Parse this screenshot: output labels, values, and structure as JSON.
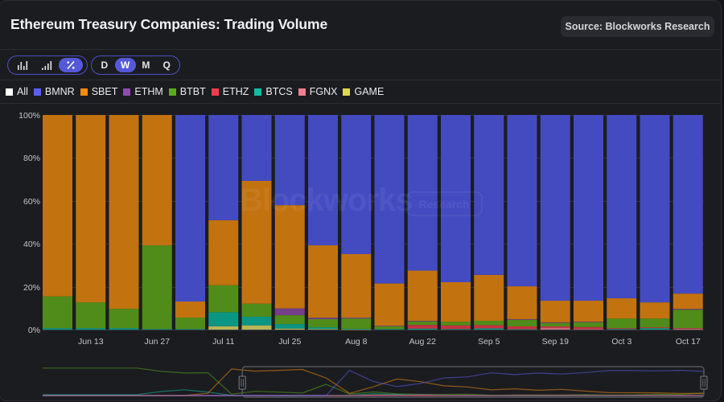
{
  "header": {
    "title": "Ethereum Treasury Companies: Trading Volume",
    "source_badge": "Source: Blockworks Research"
  },
  "toolbar": {
    "chart_modes": [
      {
        "icon": "bar-chart-icon",
        "active": false
      },
      {
        "icon": "ascending-bars-icon",
        "active": false
      },
      {
        "icon": "percent-icon",
        "active": true
      }
    ],
    "intervals": [
      {
        "label": "D",
        "active": false
      },
      {
        "label": "W",
        "active": true
      },
      {
        "label": "M",
        "active": false
      },
      {
        "label": "Q",
        "active": false
      }
    ]
  },
  "legend": {
    "items": [
      {
        "label": "All",
        "color": "#ffffff"
      },
      {
        "label": "BMNR",
        "color": "#5b5ff0"
      },
      {
        "label": "SBET",
        "color": "#f28c0f"
      },
      {
        "label": "ETHM",
        "color": "#8e4bb0"
      },
      {
        "label": "BTBT",
        "color": "#5aab1e"
      },
      {
        "label": "ETHZ",
        "color": "#ee3b4e"
      },
      {
        "label": "BTCS",
        "color": "#12bca0"
      },
      {
        "label": "FGNX",
        "color": "#ee7f8e"
      },
      {
        "label": "GAME",
        "color": "#dcd94c"
      }
    ]
  },
  "watermark": {
    "brand": "Blockworks",
    "tag": "Research"
  },
  "chart_data": {
    "type": "bar",
    "stacked": true,
    "normalized_percent": true,
    "title": "Ethereum Treasury Companies: Trading Volume",
    "xlabel": "",
    "ylabel": "",
    "ylim": [
      0,
      100
    ],
    "y_ticks": [
      0,
      20,
      40,
      60,
      80,
      100
    ],
    "y_tick_labels": [
      "0%",
      "20%",
      "40%",
      "60%",
      "80%",
      "100%"
    ],
    "grid": true,
    "legend_position": "top-left",
    "categories": [
      "Jun 6",
      "Jun 13",
      "Jun 20",
      "Jun 27",
      "Jul 4",
      "Jul 11",
      "Jul 18",
      "Jul 25",
      "Aug 1",
      "Aug 8",
      "Aug 15",
      "Aug 22",
      "Aug 29",
      "Sep 5",
      "Sep 12",
      "Sep 19",
      "Sep 26",
      "Oct 3",
      "Oct 10",
      "Oct 17"
    ],
    "x_tick_labels": [
      "Jun 13",
      "Jun 27",
      "Jul 11",
      "Jul 25",
      "Aug 8",
      "Aug 22",
      "Sep 5",
      "Sep 19",
      "Oct 3",
      "Oct 17"
    ],
    "stack_order_bottom_to_top": [
      "GAME",
      "FGNX",
      "BTCS",
      "ETHZ",
      "BTBT",
      "ETHM",
      "SBET",
      "BMNR"
    ],
    "series": [
      {
        "name": "BMNR",
        "color": "#5b5ff0",
        "bar_color": "#444bc1",
        "values": [
          0,
          0,
          0,
          0,
          86.9,
          49.0,
          30.7,
          42.0,
          60.7,
          64.8,
          78.5,
          72.5,
          77.9,
          74.5,
          79.8,
          86.5,
          86.5,
          85.4,
          87.3,
          83.2
        ]
      },
      {
        "name": "SBET",
        "color": "#f28c0f",
        "bar_color": "#c2720f",
        "values": [
          84.5,
          87.3,
          90.3,
          60.7,
          7.5,
          30.3,
          57.2,
          48.1,
          33.7,
          29.6,
          19.7,
          23.4,
          18.4,
          21.4,
          15.3,
          10.1,
          9.8,
          9.4,
          7.5,
          7.1
        ]
      },
      {
        "name": "ETHM",
        "color": "#8e4bb0",
        "bar_color": "#743f86",
        "values": [
          0,
          0,
          0,
          0,
          0,
          0,
          0,
          3.2,
          0.7,
          0.4,
          0.3,
          0.3,
          0,
          0,
          0.3,
          0.3,
          0.3,
          0,
          0,
          0.4
        ]
      },
      {
        "name": "BTBT",
        "color": "#5aab1e",
        "bar_color": "#508c19",
        "values": [
          14.8,
          12.0,
          9.0,
          39.0,
          5.3,
          12.6,
          6.1,
          4.1,
          3.8,
          4.8,
          1.2,
          1.6,
          1.7,
          2.0,
          3.1,
          1.6,
          2.2,
          4.5,
          4.1,
          8.6
        ]
      },
      {
        "name": "ETHZ",
        "color": "#ee3b4e",
        "bar_color": "#c23240",
        "values": [
          0,
          0,
          0,
          0,
          0,
          0,
          0,
          0,
          0,
          0,
          0,
          1.7,
          1.7,
          1.5,
          1.3,
          0.6,
          0.9,
          0.4,
          0.4,
          0.3
        ]
      },
      {
        "name": "BTCS",
        "color": "#12bca0",
        "bar_color": "#0b9683",
        "values": [
          0.7,
          0.7,
          0.7,
          0.3,
          0.3,
          6.5,
          4.0,
          2.1,
          0.8,
          0.3,
          0.3,
          0.5,
          0.3,
          0.6,
          0.2,
          0,
          0,
          0.3,
          0.7,
          0
        ]
      },
      {
        "name": "FGNX",
        "color": "#ee7f8e",
        "bar_color": "#c56d7b",
        "values": [
          0,
          0,
          0,
          0,
          0,
          0,
          0,
          0,
          0,
          0,
          0,
          0,
          0,
          0,
          0,
          0.9,
          0.3,
          0,
          0,
          0.4
        ]
      },
      {
        "name": "GAME",
        "color": "#dcd94c",
        "bar_color": "#b8b456",
        "values": [
          0,
          0,
          0,
          0,
          0,
          1.6,
          2.0,
          0.5,
          0.3,
          0.1,
          0,
          0,
          0,
          0,
          0,
          0,
          0,
          0,
          0,
          0
        ]
      }
    ],
    "navigator": {
      "type": "line",
      "prefix_weeks_before_first_category": 9,
      "prefix_values": {
        "BMNR": [
          0,
          0,
          0,
          0,
          0,
          0,
          0,
          0,
          0
        ],
        "SBET": [
          0,
          0,
          0,
          0,
          0,
          0,
          0,
          8,
          92
        ],
        "ETHM": [
          0,
          0,
          0,
          0,
          0,
          0,
          0,
          0,
          0
        ],
        "BTBT": [
          95,
          95,
          95,
          95,
          95,
          84,
          78,
          79,
          5
        ],
        "ETHZ": [
          0,
          0,
          0,
          0,
          0,
          0,
          0,
          0,
          0
        ],
        "BTCS": [
          3,
          3,
          3,
          3,
          3,
          14,
          20,
          12,
          1
        ],
        "FGNX": [
          0,
          0,
          0,
          0,
          0,
          0,
          0,
          0,
          0
        ],
        "GAME": [
          0,
          0,
          0,
          0,
          0,
          0,
          0,
          0,
          0
        ]
      },
      "selected_range": [
        "Jun 6",
        "Oct 17"
      ]
    }
  }
}
